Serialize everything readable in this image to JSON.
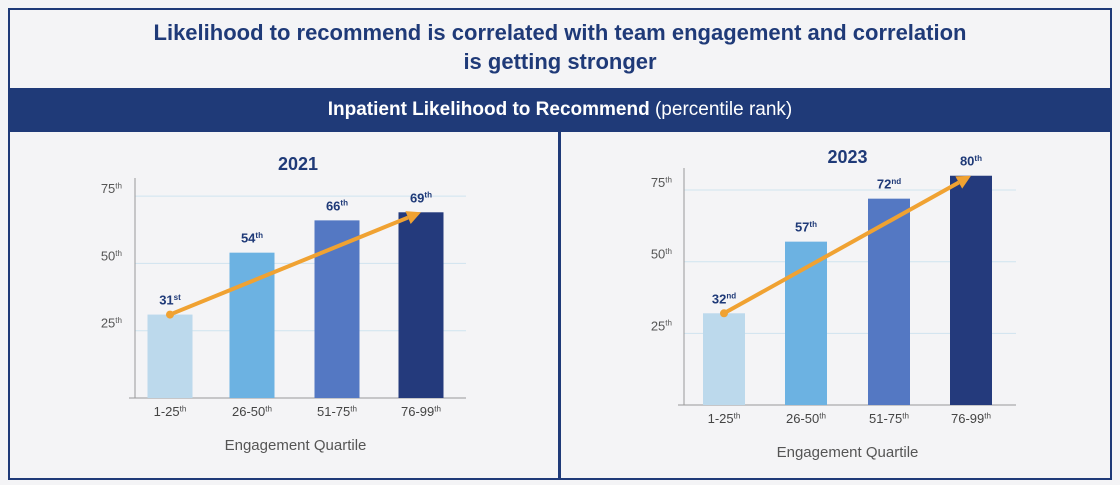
{
  "header": {
    "title": "Likelihood to recommend is correlated with team engagement and correlation is getting stronger",
    "subtitle": "Inpatient Likelihood to Recommend",
    "subtitle_note": "(percentile rank)"
  },
  "chart_data": [
    {
      "type": "bar",
      "title": "2021",
      "x_label": "Engagement Quartile",
      "categories": [
        "1-25th",
        "26-50th",
        "51-75th",
        "76-99th"
      ],
      "values": [
        31,
        54,
        66,
        69
      ],
      "value_labels": [
        "31st",
        "54th",
        "66th",
        "69th"
      ],
      "colors": [
        "#bcd9ec",
        "#6cb2e2",
        "#5478c3",
        "#243a7c"
      ],
      "ylim": [
        0,
        81
      ],
      "yticks": [
        {
          "value": 25,
          "label": "25th"
        },
        {
          "value": 50,
          "label": "50th"
        },
        {
          "value": 75,
          "label": "75th"
        }
      ],
      "grid": true,
      "trend_color": "#f0a232"
    },
    {
      "type": "bar",
      "title": "2023",
      "x_label": "Engagement Quartile",
      "categories": [
        "1-25th",
        "26-50th",
        "51-75th",
        "76-99th"
      ],
      "values": [
        32,
        57,
        72,
        80
      ],
      "value_labels": [
        "32nd",
        "57th",
        "72nd",
        "80th"
      ],
      "colors": [
        "#bcd9ec",
        "#6cb2e2",
        "#5478c3",
        "#243a7c"
      ],
      "ylim": [
        0,
        82
      ],
      "yticks": [
        {
          "value": 25,
          "label": "25th"
        },
        {
          "value": 50,
          "label": "50th"
        },
        {
          "value": 75,
          "label": "75th"
        }
      ],
      "grid": true,
      "trend_color": "#f0a232"
    }
  ]
}
